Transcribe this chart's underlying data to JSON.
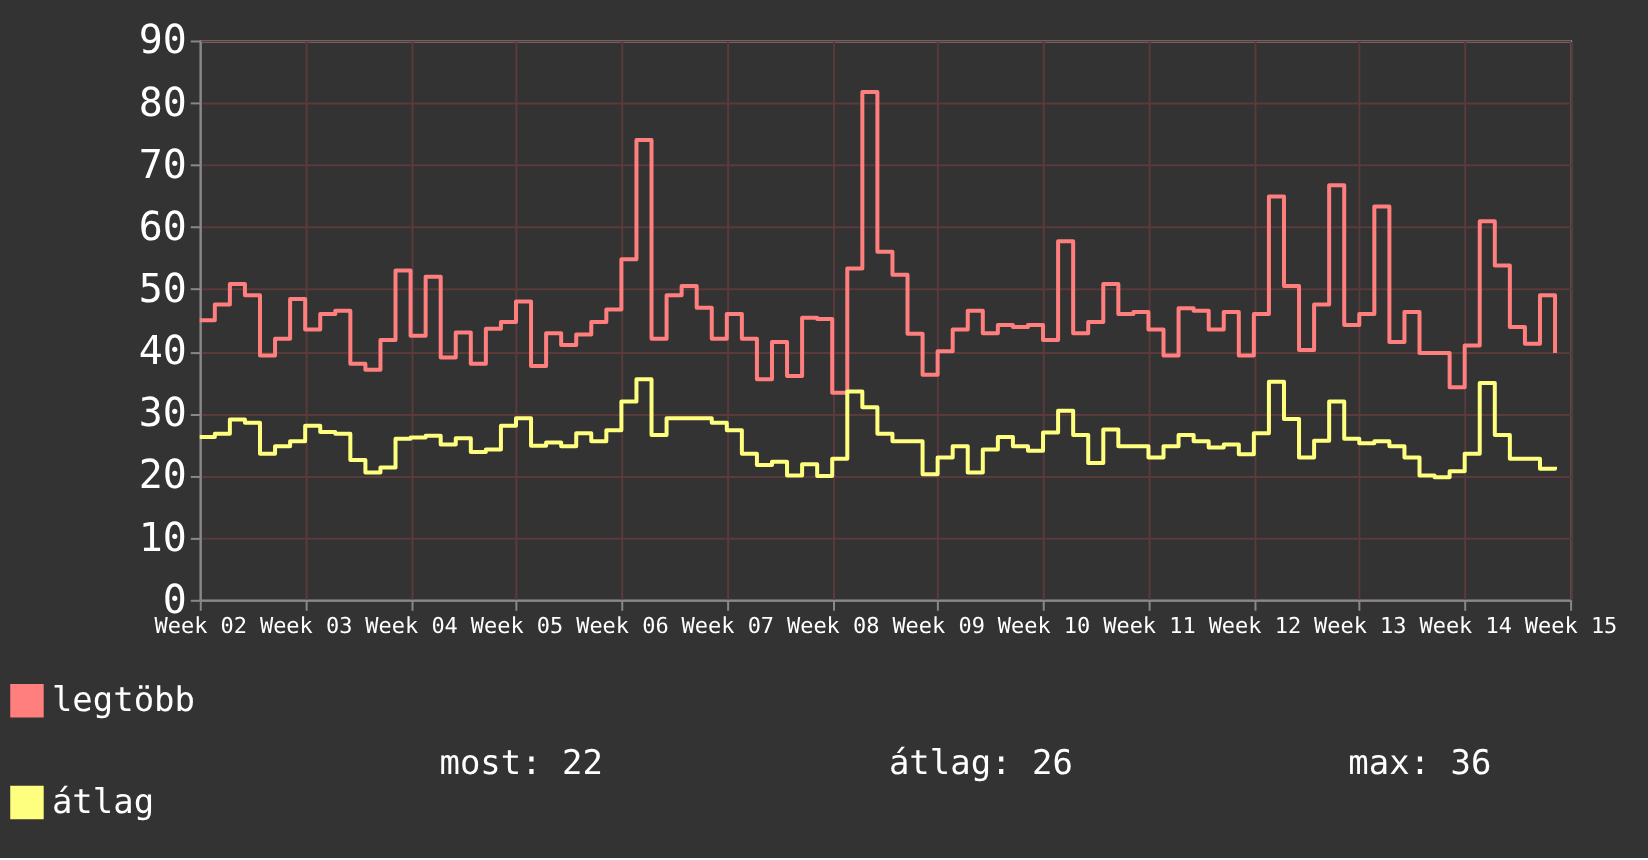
{
  "chart_data": {
    "type": "step",
    "categories": [
      "Week 02",
      null,
      null,
      null,
      null,
      null,
      null,
      "Week 03",
      null,
      null,
      null,
      null,
      null,
      null,
      "Week 04",
      null,
      null,
      null,
      null,
      null,
      null,
      "Week 05",
      null,
      null,
      null,
      null,
      null,
      null,
      "Week 06",
      null,
      null,
      null,
      null,
      null,
      null,
      "Week 07",
      null,
      null,
      null,
      null,
      null,
      null,
      "Week 08",
      null,
      null,
      null,
      null,
      null,
      null,
      "Week 09",
      null,
      null,
      null,
      null,
      null,
      null,
      "Week 10",
      null,
      null,
      null,
      null,
      null,
      null,
      "Week 11",
      null,
      null,
      null,
      null,
      null,
      null,
      "Week 12",
      null,
      null,
      null,
      null,
      null,
      null,
      "Week 13",
      null,
      null,
      null,
      null,
      null,
      null,
      "Week 14",
      null,
      null,
      null,
      null,
      null,
      null,
      "Week 15"
    ],
    "series": [
      {
        "name": "legtöbb",
        "color": "#ff7f7f",
        "values": [
          45,
          47.5,
          50.8,
          49,
          39.3,
          42,
          48.4,
          43.5,
          46,
          46.5,
          38,
          37,
          41.8,
          53,
          42.5,
          52,
          39,
          43,
          38,
          43.6,
          44.7,
          48,
          37.6,
          42.9,
          41,
          42.7,
          44.7,
          46.7,
          54.8,
          74,
          42,
          49,
          50.5,
          47,
          42,
          46,
          42,
          35.5,
          41.5,
          36,
          45.4,
          45.2,
          33.3,
          53.3,
          81.7,
          56,
          52.3,
          42.8,
          36.2,
          40,
          43.5,
          46.5,
          42.9,
          44.2,
          43.9,
          44.2,
          41.8,
          57.7,
          42.9,
          44.7,
          50.8,
          46,
          46.3,
          43.5,
          39.3,
          46.9,
          46.5,
          43.5,
          46.3,
          39.3,
          46,
          64.9,
          50.5,
          40.2,
          47.5,
          66.7,
          44.2,
          46,
          63.3,
          41.5,
          46.3,
          39.7,
          39.7,
          34.2,
          40.9,
          60.9,
          53.8,
          43.9,
          41.2,
          49,
          39.7,
          null
        ]
      },
      {
        "name": "átlag",
        "color": "#ffff7f",
        "values": [
          26.2,
          26.7,
          29,
          28.5,
          23.5,
          24.7,
          25.5,
          28,
          27,
          26.7,
          22.5,
          20.5,
          21.3,
          25.9,
          26.1,
          26.4,
          25,
          26,
          23.8,
          24.2,
          28,
          29.2,
          24.8,
          25.3,
          24.7,
          26.8,
          25.5,
          27.3,
          31.9,
          35.5,
          26.5,
          29.2,
          29.2,
          29.2,
          28.5,
          27.3,
          23.5,
          21.7,
          22.2,
          20,
          21.8,
          19.9,
          22.7,
          33.5,
          31,
          26.7,
          25.5,
          25.5,
          20.2,
          22.9,
          24.7,
          20.5,
          24.2,
          26.2,
          24.7,
          24,
          26.9,
          30.4,
          26.5,
          22,
          27.4,
          24.7,
          24.7,
          22.9,
          24.7,
          26.5,
          25.5,
          24.5,
          25,
          23.4,
          26.8,
          35.1,
          29.1,
          22.9,
          25.6,
          31.9,
          25.9,
          25.2,
          25.5,
          24.7,
          22.9,
          20,
          19.7,
          20.7,
          23.5,
          34.9,
          26.5,
          22.7,
          22.7,
          21.1,
          21.4,
          null
        ]
      }
    ],
    "ylim": [
      0,
      90
    ],
    "yticks": [
      0,
      10,
      20,
      30,
      40,
      50,
      60,
      70,
      80,
      90
    ],
    "grid": true,
    "legend": "bottom left",
    "line_style": "solid",
    "annotations": [
      "most: 22",
      "átlag: 26",
      "max: 36"
    ]
  }
}
